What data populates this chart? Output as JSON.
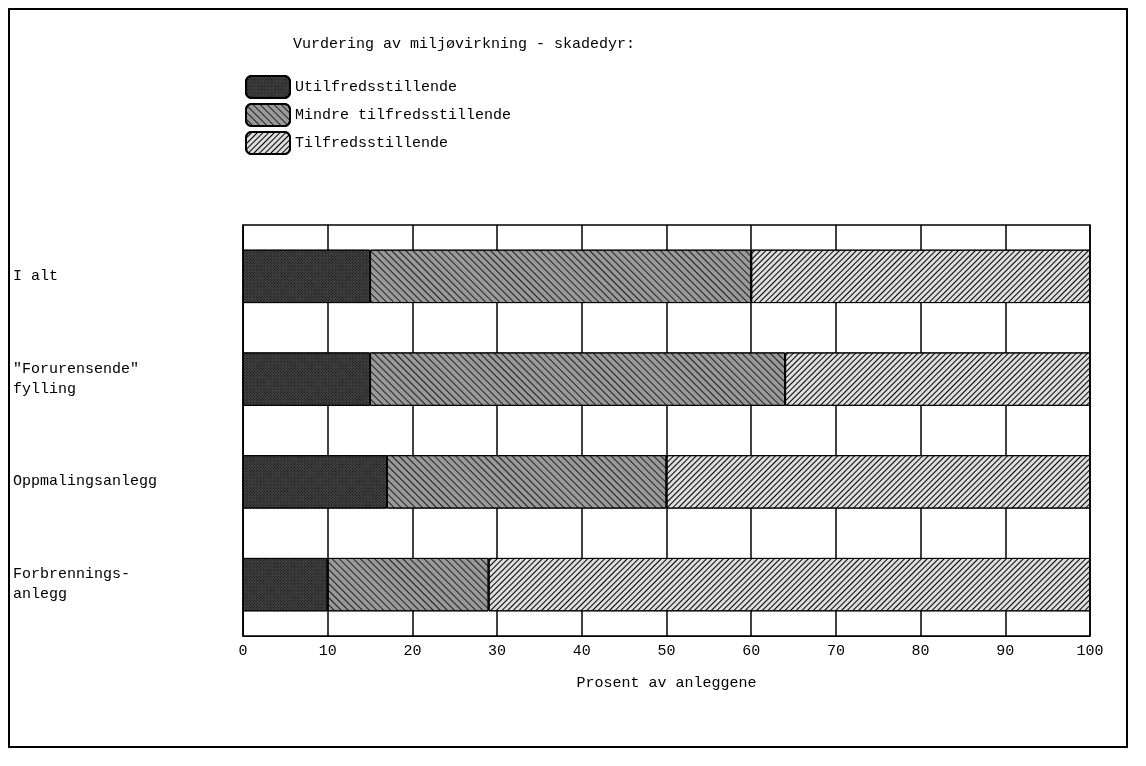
{
  "chart_data": {
    "type": "bar",
    "orientation": "horizontal",
    "stacked": true,
    "categories": [
      "I alt",
      "\"Forurensende\"\nfylling",
      "Oppmalingsanlegg",
      "Forbrennings-\nanlegg"
    ],
    "series": [
      {
        "name": "Utilfredsstillende",
        "color": "#444444",
        "values": [
          15,
          15,
          17,
          10
        ]
      },
      {
        "name": "Mindre tilfredsstillende",
        "color": "#999999",
        "values": [
          45,
          49,
          33,
          19
        ]
      },
      {
        "name": "Tilfredsstillende",
        "color": "#dddddd",
        "values": [
          40,
          36,
          50,
          71
        ]
      }
    ],
    "legend_title": "Vurdering av miljøvirkning - skadedyr:",
    "xlabel": "Prosent av anleggene",
    "xlim": [
      0,
      100
    ],
    "xticks": [
      0,
      10,
      20,
      30,
      40,
      50,
      60,
      70,
      80,
      90,
      100
    ],
    "grid": "x",
    "legend": "top left"
  }
}
